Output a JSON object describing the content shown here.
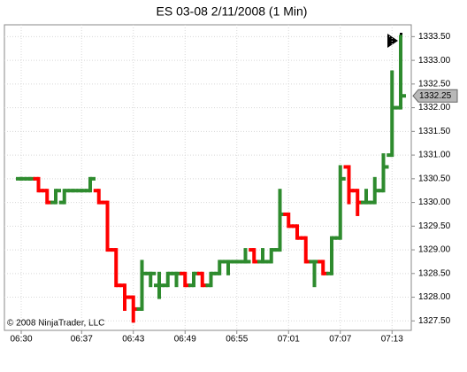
{
  "chart_data": {
    "type": "ohlc",
    "title": "ES 03-08  2/11/2008 (1 Min)",
    "copyright": "© 2008 NinjaTrader, LLC",
    "categories": [
      "06:30",
      null,
      null,
      null,
      null,
      null,
      null,
      "06:37",
      null,
      null,
      null,
      null,
      null,
      "06:43",
      null,
      null,
      null,
      null,
      null,
      "06:49",
      null,
      null,
      null,
      null,
      null,
      "06:55",
      null,
      null,
      null,
      null,
      null,
      "07:01",
      null,
      null,
      null,
      null,
      null,
      "07:07",
      null,
      null,
      null,
      null,
      null,
      "07:13",
      null
    ],
    "open": [
      1330.5,
      1330.5,
      1330.5,
      1330.25,
      1330,
      1330,
      1330.25,
      1330.25,
      1330.25,
      1330.25,
      1330,
      1329,
      1328.25,
      1328,
      1327.75,
      1328.5,
      1328.25,
      1328.25,
      1328.5,
      1328.5,
      1328.25,
      1328.5,
      1328.25,
      1328.5,
      1328.75,
      1328.75,
      1328.75,
      1329,
      1328.75,
      1328.75,
      1329,
      1329.75,
      1329.5,
      1329.25,
      1328.75,
      1328.75,
      1328.5,
      1329.25,
      1330.75,
      1330.25,
      1330,
      1330,
      1330.25,
      1331,
      1332
    ],
    "high": [
      1330.5,
      1330.5,
      1330.5,
      1330.25,
      1330.25,
      1330.25,
      1330.25,
      1330.25,
      1330.5,
      1330.25,
      1330,
      1329,
      1328.25,
      1328,
      1328.75,
      1328.5,
      1328.5,
      1328.5,
      1328.5,
      1328.5,
      1328.5,
      1328.5,
      1328.5,
      1328.75,
      1328.75,
      1328.75,
      1329,
      1329,
      1329,
      1329,
      1330.25,
      1329.75,
      1329.5,
      1329.25,
      1328.75,
      1328.75,
      1329.25,
      1330.75,
      1330.75,
      1330.25,
      1330.25,
      1330.5,
      1331,
      1332.75,
      1333.5
    ],
    "low": [
      1330.5,
      1330.5,
      1330.25,
      1330,
      1330,
      1330,
      1330.25,
      1330.25,
      1330.25,
      1330,
      1329,
      1328.25,
      1327.75,
      1327.5,
      1327.75,
      1328.25,
      1328,
      1328.25,
      1328.25,
      1328.25,
      1328.25,
      1328.25,
      1328.25,
      1328.5,
      1328.5,
      1328.75,
      1328.75,
      1328.75,
      1328.75,
      1328.75,
      1329,
      1329.5,
      1329.25,
      1328.75,
      1328.25,
      1328.5,
      1328.5,
      1329.25,
      1330,
      1329.75,
      1330,
      1330,
      1330.25,
      1331,
      1332
    ],
    "close": [
      1330.5,
      1330.5,
      1330.25,
      1330,
      1330.25,
      1330.25,
      1330.25,
      1330.25,
      1330.5,
      1330,
      1329,
      1328.25,
      1328,
      1327.75,
      1328.5,
      1328.5,
      1328.25,
      1328.5,
      1328.5,
      1328.25,
      1328.5,
      1328.25,
      1328.5,
      1328.75,
      1328.75,
      1328.75,
      1328.75,
      1328.75,
      1328.75,
      1329,
      1329.75,
      1329.5,
      1329.25,
      1328.75,
      1328.75,
      1328.5,
      1329.25,
      1330.5,
      1330.25,
      1330,
      1330,
      1330.25,
      1330.75,
      1332,
      1332.25
    ],
    "up_color": "#2e8b2e",
    "down_color": "#ff0000",
    "last_price": 1332.25,
    "ylim": [
      1327.3,
      1333.75
    ],
    "yticks": [
      {
        "value": 1327.5,
        "label": "1327.50"
      },
      {
        "value": 1328,
        "label": "1328.00"
      },
      {
        "value": 1328.5,
        "label": "1328.50"
      },
      {
        "value": 1329,
        "label": "1329.00"
      },
      {
        "value": 1329.5,
        "label": "1329.50"
      },
      {
        "value": 1330,
        "label": "1330.00"
      },
      {
        "value": 1330.5,
        "label": "1330.50"
      },
      {
        "value": 1331,
        "label": "1331.00"
      },
      {
        "value": 1331.5,
        "label": "1331.50"
      },
      {
        "value": 1332,
        "label": "1332.00"
      },
      {
        "value": 1332.5,
        "label": "1332.50"
      },
      {
        "value": 1333,
        "label": "1333.00"
      },
      {
        "value": 1333.5,
        "label": "1333.50"
      }
    ],
    "grid": true
  }
}
